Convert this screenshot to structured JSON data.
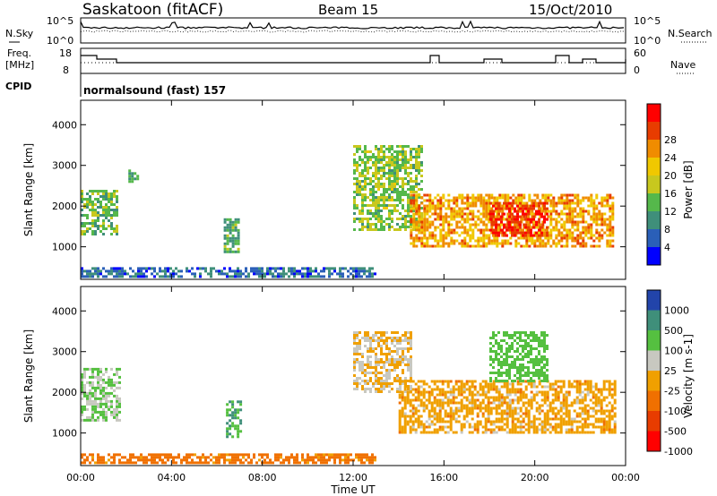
{
  "header": {
    "station": "Saskatoon (fitACF)",
    "beam": "Beam 15",
    "date": "15/Oct/2010"
  },
  "noise_panel": {
    "left_label": "N.Sky",
    "right_label": "N.Search",
    "left_ticks": [
      "10^5",
      "10^0"
    ],
    "right_ticks": [
      "10^5",
      "10^0"
    ]
  },
  "freq_panel": {
    "left_label_line1": "Freq.",
    "left_label_line2": "[MHz]",
    "right_label": "Nave",
    "left_ticks": [
      "18",
      "8"
    ],
    "right_ticks": [
      "60",
      "0"
    ]
  },
  "cpid": {
    "label": "CPID",
    "value": "normalsound (fast) 157"
  },
  "x_axis": {
    "label": "Time UT",
    "ticks": [
      "00:00",
      "04:00",
      "08:00",
      "12:00",
      "16:00",
      "20:00",
      "00:00"
    ]
  },
  "chart_data": [
    {
      "type": "heatmap",
      "title": "",
      "ylabel": "Slant Range [km]",
      "xlabel": "Time UT",
      "xlim": [
        0,
        24
      ],
      "ylim": [
        200,
        4600
      ],
      "yticks": [
        "1000",
        "2000",
        "3000",
        "4000"
      ],
      "colorbar": {
        "label": "Power [dB]",
        "ticks": [
          "4",
          "8",
          "12",
          "16",
          "20",
          "24",
          "28"
        ],
        "range": [
          0,
          32
        ],
        "colors": [
          "#0000ff",
          "#2a5fb8",
          "#3f8f7a",
          "#55b84b",
          "#c8c81e",
          "#f0c800",
          "#f08c00",
          "#e83c00",
          "#ff0000"
        ]
      },
      "regions": [
        {
          "t0": 0.0,
          "t1": 1.6,
          "r0": 1300,
          "r1": 2400,
          "level": 12
        },
        {
          "t0": 2.1,
          "t1": 2.5,
          "r0": 2600,
          "r1": 2900,
          "level": 10
        },
        {
          "t0": 6.3,
          "t1": 7.0,
          "r0": 900,
          "r1": 1700,
          "level": 11
        },
        {
          "t0": 0.0,
          "t1": 13.0,
          "r0": 300,
          "r1": 500,
          "level": 6
        },
        {
          "t0": 12.0,
          "t1": 15.0,
          "r0": 1400,
          "r1": 3500,
          "level": 14
        },
        {
          "t0": 14.5,
          "t1": 23.5,
          "r0": 1000,
          "r1": 2300,
          "level": 22
        },
        {
          "t0": 18.0,
          "t1": 20.5,
          "r0": 1300,
          "r1": 2100,
          "level": 28
        }
      ]
    },
    {
      "type": "heatmap",
      "title": "",
      "ylabel": "Slant Range [km]",
      "xlabel": "Time UT",
      "xlim": [
        0,
        24
      ],
      "ylim": [
        200,
        4600
      ],
      "yticks": [
        "1000",
        "2000",
        "3000",
        "4000"
      ],
      "colorbar": {
        "label": "Velocity [m s-1]",
        "ticks": [
          "1000",
          "500",
          "100",
          "25",
          "-25",
          "-100",
          "-500",
          "-1000"
        ],
        "colors": [
          "#2244aa",
          "#3f8f7a",
          "#55c040",
          "#c8c8c0",
          "#f0a000",
          "#f07000",
          "#e83c00",
          "#ff0000"
        ]
      },
      "regions": [
        {
          "t0": 0.0,
          "t1": 1.7,
          "r0": 1300,
          "r1": 2600,
          "level": 100
        },
        {
          "t0": 6.4,
          "t1": 7.0,
          "r0": 900,
          "r1": 1800,
          "level": 500
        },
        {
          "t0": 0.0,
          "t1": 13.0,
          "r0": 300,
          "r1": 500,
          "level": -50
        },
        {
          "t0": 12.0,
          "t1": 14.5,
          "r0": 2000,
          "r1": 3500,
          "level": 25
        },
        {
          "t0": 14.0,
          "t1": 23.5,
          "r0": 1000,
          "r1": 2300,
          "level": 0
        },
        {
          "t0": 18.0,
          "t1": 20.5,
          "r0": 2300,
          "r1": 3500,
          "level": 200
        }
      ]
    }
  ]
}
